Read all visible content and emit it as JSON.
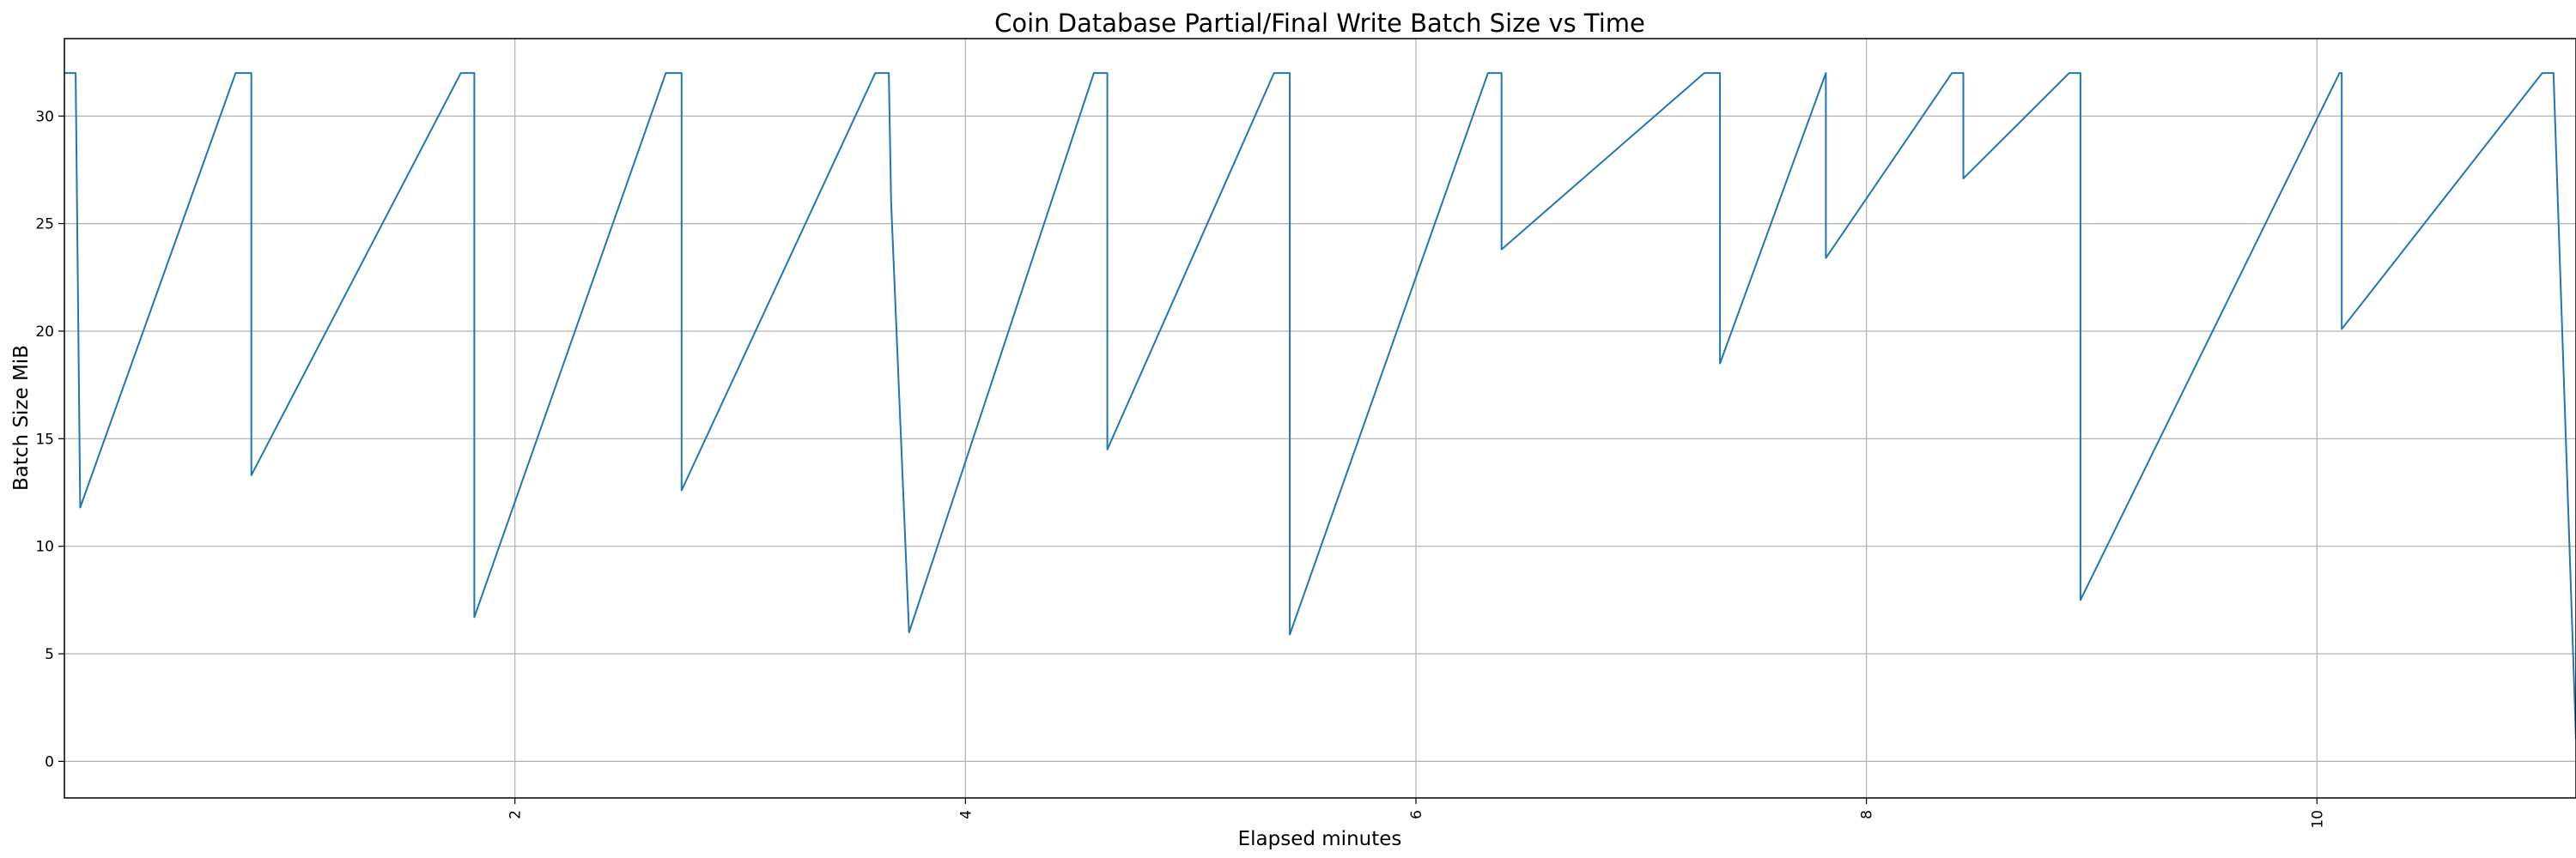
{
  "chart_data": {
    "type": "line",
    "title": "Coin Database Partial/Final Write Batch Size vs Time",
    "xlabel": "Elapsed minutes",
    "ylabel": "Batch Size MiB",
    "xlim": [
      0.0,
      11.15
    ],
    "ylim": [
      -1.7,
      33.6
    ],
    "x_ticks": [
      2,
      4,
      6,
      8,
      10
    ],
    "x_tick_labels": [
      "2",
      "4",
      "6",
      "8",
      "10"
    ],
    "y_ticks": [
      0,
      5,
      10,
      15,
      20,
      25,
      30
    ],
    "y_tick_labels": [
      "0",
      "5",
      "10",
      "15",
      "20",
      "25",
      "30"
    ],
    "grid": true,
    "line_color": "#1f77b4",
    "series": [
      {
        "name": "",
        "x": [
          0.0,
          0.05,
          0.05,
          0.07,
          0.76,
          0.83,
          0.83,
          1.76,
          1.82,
          1.82,
          2.67,
          2.74,
          2.74,
          3.6,
          3.66,
          3.67,
          3.75,
          4.57,
          4.63,
          4.63,
          5.37,
          5.44,
          5.44,
          6.32,
          6.38,
          6.38,
          7.28,
          7.35,
          7.35,
          7.82,
          7.82,
          8.38,
          8.43,
          8.43,
          8.9,
          8.95,
          8.95,
          10.1,
          10.11,
          10.11,
          11.0,
          11.05,
          11.15
        ],
        "y": [
          32,
          32,
          32,
          11.8,
          32,
          32,
          13.3,
          32,
          32,
          6.7,
          32,
          32,
          12.6,
          32,
          32,
          26.0,
          6.0,
          32,
          32,
          14.5,
          32,
          32,
          5.9,
          32,
          32,
          23.8,
          32,
          32,
          18.5,
          32,
          23.4,
          32,
          32,
          27.1,
          32,
          32,
          7.5,
          32,
          32,
          20.1,
          32,
          32,
          1.0
        ]
      }
    ]
  }
}
